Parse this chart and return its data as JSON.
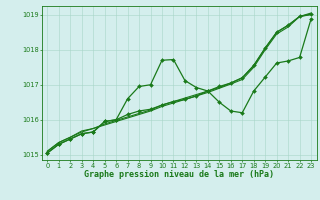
{
  "title": "Graphe pression niveau de la mer (hPa)",
  "xlabel": "Graphe pression niveau de la mer (hPa)",
  "x": [
    0,
    1,
    2,
    3,
    4,
    5,
    6,
    7,
    8,
    9,
    10,
    11,
    12,
    13,
    14,
    15,
    16,
    17,
    18,
    19,
    20,
    21,
    22,
    23
  ],
  "series": [
    {
      "y": [
        1015.1,
        1015.35,
        1015.5,
        1015.65,
        1015.75,
        1015.85,
        1015.95,
        1016.05,
        1016.15,
        1016.25,
        1016.38,
        1016.48,
        1016.58,
        1016.68,
        1016.78,
        1016.9,
        1017.02,
        1017.15,
        1017.5,
        1018.0,
        1018.45,
        1018.65,
        1018.95,
        1019.0
      ],
      "color": "#1a7a1a",
      "linewidth": 0.8,
      "marker": null,
      "markersize": 0
    },
    {
      "y": [
        1015.1,
        1015.35,
        1015.5,
        1015.68,
        1015.75,
        1015.88,
        1015.98,
        1016.08,
        1016.18,
        1016.28,
        1016.42,
        1016.52,
        1016.62,
        1016.72,
        1016.82,
        1016.92,
        1017.05,
        1017.2,
        1017.55,
        1018.05,
        1018.5,
        1018.7,
        1018.95,
        1019.05
      ],
      "color": "#1a7a1a",
      "linewidth": 0.8,
      "marker": null,
      "markersize": 0
    },
    {
      "y": [
        1015.05,
        1015.3,
        1015.45,
        1015.6,
        1015.65,
        1015.95,
        1016.0,
        1016.6,
        1016.95,
        1017.0,
        1017.7,
        1017.72,
        1017.12,
        1016.92,
        1016.82,
        1016.5,
        1016.25,
        1016.2,
        1016.82,
        1017.22,
        1017.62,
        1017.68,
        1017.78,
        1018.88
      ],
      "color": "#1a7a1a",
      "linewidth": 0.9,
      "marker": "D",
      "markersize": 2.0
    },
    {
      "y": [
        1015.05,
        1015.3,
        1015.45,
        1015.6,
        1015.65,
        1015.95,
        1016.0,
        1016.15,
        1016.25,
        1016.3,
        1016.42,
        1016.52,
        1016.58,
        1016.68,
        1016.82,
        1016.95,
        1017.05,
        1017.2,
        1017.55,
        1018.05,
        1018.5,
        1018.7,
        1018.95,
        1019.02
      ],
      "color": "#1a7a1a",
      "linewidth": 0.9,
      "marker": "D",
      "markersize": 2.0
    }
  ],
  "ylim": [
    1014.85,
    1019.25
  ],
  "yticks": [
    1015,
    1016,
    1017,
    1018,
    1019
  ],
  "xlim": [
    -0.5,
    23.5
  ],
  "xticks": [
    0,
    1,
    2,
    3,
    4,
    5,
    6,
    7,
    8,
    9,
    10,
    11,
    12,
    13,
    14,
    15,
    16,
    17,
    18,
    19,
    20,
    21,
    22,
    23
  ],
  "bg_color": "#d4eeed",
  "grid_color": "#a8d5c8",
  "axis_color": "#1a7a1a",
  "tick_color": "#1a7a1a",
  "label_color": "#1a7a1a",
  "tick_fontsize": 4.8,
  "label_fontsize": 6.0
}
